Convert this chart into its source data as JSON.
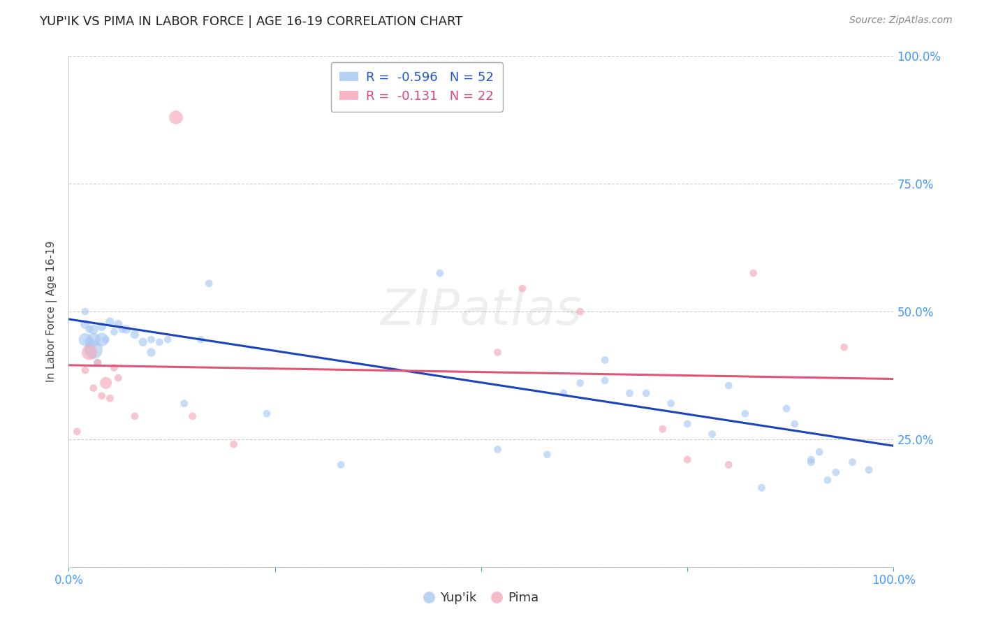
{
  "title": "YUP'IK VS PIMA IN LABOR FORCE | AGE 16-19 CORRELATION CHART",
  "source": "Source: ZipAtlas.com",
  "ylabel": "In Labor Force | Age 16-19",
  "xlim": [
    0.0,
    1.0
  ],
  "ylim": [
    0.0,
    1.0
  ],
  "xtick_positions": [
    0.0,
    0.25,
    0.5,
    0.75,
    1.0
  ],
  "xtick_labels": [
    "0.0%",
    "",
    "",
    "",
    "100.0%"
  ],
  "ytick_positions": [
    0.0,
    0.25,
    0.5,
    0.75,
    1.0
  ],
  "ytick_labels": [
    "",
    "25.0%",
    "50.0%",
    "75.0%",
    "100.0%"
  ],
  "tick_color": "#4499ff",
  "grid_color": "#cccccc",
  "background_color": "#ffffff",
  "legend_r1": "-0.596",
  "legend_n1": "52",
  "legend_r2": "-0.131",
  "legend_n2": "22",
  "blue_color": "#a8c8f0",
  "pink_color": "#f4a8b8",
  "blue_line_color": "#1a44bb",
  "pink_line_color": "#e05575",
  "blue_legend_color": "#2255cc",
  "pink_legend_color": "#dd4477",
  "yupik_x": [
    0.02,
    0.02,
    0.02,
    0.025,
    0.025,
    0.03,
    0.03,
    0.03,
    0.035,
    0.04,
    0.04,
    0.045,
    0.05,
    0.055,
    0.06,
    0.065,
    0.07,
    0.08,
    0.09,
    0.1,
    0.1,
    0.11,
    0.12,
    0.14,
    0.16,
    0.17,
    0.24,
    0.33,
    0.45,
    0.52,
    0.58,
    0.6,
    0.62,
    0.65,
    0.65,
    0.68,
    0.7,
    0.73,
    0.75,
    0.78,
    0.8,
    0.82,
    0.84,
    0.87,
    0.88,
    0.9,
    0.9,
    0.91,
    0.92,
    0.93,
    0.95,
    0.97
  ],
  "yupik_y": [
    0.445,
    0.475,
    0.5,
    0.44,
    0.465,
    0.425,
    0.445,
    0.465,
    0.4,
    0.445,
    0.47,
    0.445,
    0.48,
    0.46,
    0.475,
    0.465,
    0.465,
    0.455,
    0.44,
    0.42,
    0.445,
    0.44,
    0.445,
    0.32,
    0.445,
    0.555,
    0.3,
    0.2,
    0.575,
    0.23,
    0.22,
    0.34,
    0.36,
    0.365,
    0.405,
    0.34,
    0.34,
    0.32,
    0.28,
    0.26,
    0.355,
    0.3,
    0.155,
    0.31,
    0.28,
    0.205,
    0.21,
    0.225,
    0.17,
    0.185,
    0.205,
    0.19
  ],
  "yupik_sizes": [
    180,
    100,
    60,
    100,
    60,
    350,
    200,
    100,
    60,
    200,
    80,
    60,
    80,
    60,
    80,
    60,
    80,
    80,
    80,
    80,
    60,
    60,
    60,
    60,
    60,
    60,
    60,
    60,
    60,
    60,
    60,
    60,
    60,
    60,
    60,
    60,
    60,
    60,
    60,
    60,
    60,
    60,
    60,
    60,
    60,
    60,
    60,
    60,
    60,
    60,
    60,
    60
  ],
  "pima_x": [
    0.01,
    0.02,
    0.025,
    0.03,
    0.035,
    0.04,
    0.045,
    0.05,
    0.055,
    0.06,
    0.08,
    0.13,
    0.15,
    0.2,
    0.52,
    0.55,
    0.62,
    0.72,
    0.75,
    0.8,
    0.83,
    0.94
  ],
  "pima_y": [
    0.265,
    0.385,
    0.42,
    0.35,
    0.4,
    0.335,
    0.36,
    0.33,
    0.39,
    0.37,
    0.295,
    0.88,
    0.295,
    0.24,
    0.42,
    0.545,
    0.5,
    0.27,
    0.21,
    0.2,
    0.575,
    0.43
  ],
  "pima_sizes": [
    60,
    60,
    250,
    60,
    60,
    60,
    150,
    60,
    60,
    60,
    60,
    200,
    60,
    60,
    60,
    60,
    60,
    60,
    60,
    60,
    60,
    60
  ],
  "yupik_line_x0": 0.0,
  "yupik_line_y0": 0.485,
  "yupik_line_x1": 1.0,
  "yupik_line_y1": 0.237,
  "pima_line_x0": 0.0,
  "pima_line_y0": 0.395,
  "pima_line_x1": 1.0,
  "pima_line_y1": 0.368
}
